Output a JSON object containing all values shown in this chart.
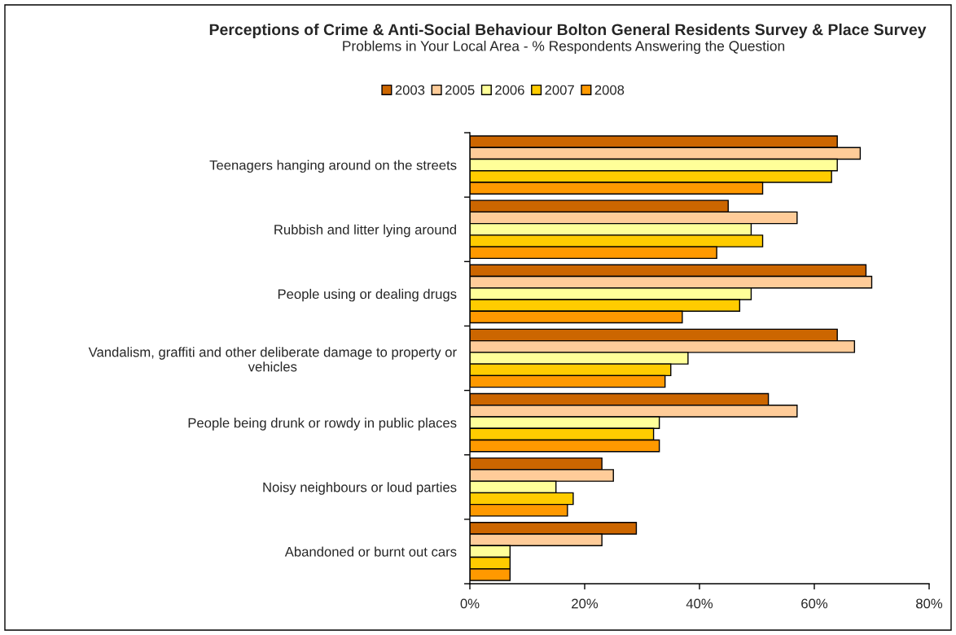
{
  "chart_data": {
    "type": "bar",
    "orientation": "horizontal",
    "title": "Perceptions of Crime & Anti-Social Behaviour Bolton General Residents Survey & Place Survey",
    "subtitle": "Problems in Your Local Area - % Respondents Answering the Question",
    "categories": [
      "Teenagers hanging around on the streets",
      "Rubbish and litter lying around",
      "People using or dealing drugs",
      "Vandalism, graffiti and other deliberate damage to property or\nvehicles",
      "People being drunk or rowdy in public places",
      "Noisy neighbours or loud parties",
      "Abandoned or burnt out cars"
    ],
    "series": [
      {
        "name": "2003",
        "color": "#cc6600",
        "values": [
          64,
          45,
          69,
          64,
          52,
          23,
          29
        ]
      },
      {
        "name": "2005",
        "color": "#ffcc99",
        "values": [
          68,
          57,
          70,
          67,
          57,
          25,
          23
        ]
      },
      {
        "name": "2006",
        "color": "#ffff99",
        "values": [
          64,
          49,
          49,
          38,
          33,
          15,
          7
        ]
      },
      {
        "name": "2007",
        "color": "#ffcc00",
        "values": [
          63,
          51,
          47,
          35,
          32,
          18,
          7
        ]
      },
      {
        "name": "2008",
        "color": "#ff9900",
        "values": [
          51,
          43,
          37,
          34,
          33,
          17,
          7
        ]
      }
    ],
    "xlim": [
      0,
      80
    ],
    "xticks": [
      {
        "value": 0,
        "label": "0%"
      },
      {
        "value": 20,
        "label": "20%"
      },
      {
        "value": 40,
        "label": "40%"
      },
      {
        "value": 60,
        "label": "60%"
      },
      {
        "value": 80,
        "label": "80%"
      }
    ],
    "legend": "top",
    "grid": false
  }
}
